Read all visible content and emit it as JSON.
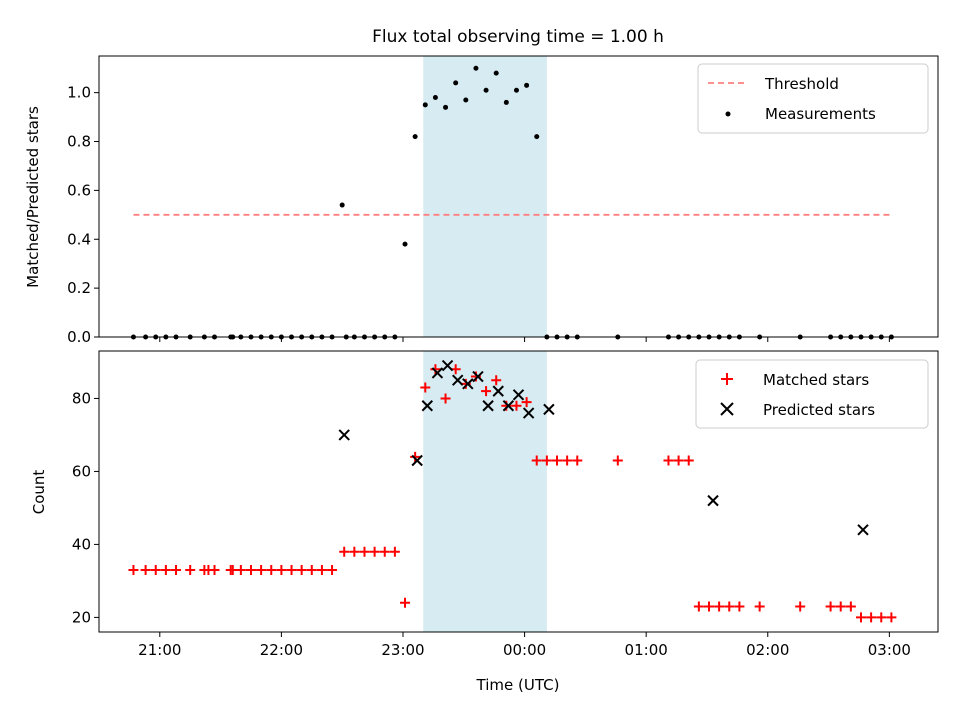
{
  "title": "Flux total observing time = 1.00 h",
  "colors": {
    "threshold": "#ff8080",
    "measurement": "#000000",
    "matched": "#ff0000",
    "predicted": "#000000",
    "band": "#add8e6"
  },
  "chart_data": [
    {
      "type": "scatter",
      "ylabel": "Matched/Predicted stars",
      "xlim": [
        20.5,
        3.4
      ],
      "ylim": [
        0,
        1.15
      ],
      "yticks": [
        "0.0",
        "0.2",
        "0.4",
        "0.6",
        "0.8",
        "1.0"
      ],
      "shaded_band": {
        "from": "23:10",
        "to": "00:11"
      },
      "legend_position": "top-right",
      "series": [
        {
          "name": "Threshold",
          "style": "dashed-line",
          "x": [
            "20:47",
            "03:00"
          ],
          "values": [
            0.5,
            0.5
          ]
        },
        {
          "name": "Measurements",
          "style": "dot",
          "x": [
            "20:47",
            "20:53",
            "20:58",
            "21:03",
            "21:08",
            "21:15",
            "21:22",
            "21:27",
            "21:35",
            "21:36",
            "21:40",
            "21:45",
            "21:50",
            "21:55",
            "22:00",
            "22:05",
            "22:10",
            "22:15",
            "22:20",
            "22:25",
            "22:30",
            "22:32",
            "22:36",
            "22:41",
            "22:46",
            "22:51",
            "22:56",
            "23:01",
            "23:06",
            "23:11",
            "23:16",
            "23:21",
            "23:26",
            "23:31",
            "23:36",
            "23:41",
            "23:46",
            "23:51",
            "23:56",
            "00:01",
            "00:06",
            "00:11",
            "00:16",
            "00:21",
            "00:26",
            "00:46",
            "01:11",
            "01:16",
            "01:21",
            "01:26",
            "01:31",
            "01:36",
            "01:41",
            "01:46",
            "01:56",
            "02:16",
            "02:31",
            "02:36",
            "02:41",
            "02:46",
            "02:51",
            "02:56",
            "03:01"
          ],
          "values": [
            0,
            0,
            0,
            0,
            0,
            0,
            0,
            0,
            0,
            0,
            0,
            0,
            0,
            0,
            0,
            0,
            0,
            0,
            0,
            0,
            0.54,
            0,
            0,
            0,
            0,
            0,
            0,
            0.38,
            0.82,
            0.95,
            0.98,
            0.94,
            1.04,
            0.97,
            1.1,
            1.01,
            1.08,
            0.96,
            1.01,
            1.03,
            0.82,
            0,
            0,
            0,
            0,
            0,
            0,
            0,
            0,
            0,
            0,
            0,
            0,
            0,
            0,
            0,
            0,
            0,
            0,
            0,
            0,
            0,
            0
          ]
        }
      ]
    },
    {
      "type": "scatter",
      "xlabel": "Time (UTC)",
      "ylabel": "Count",
      "xlim": [
        20.5,
        3.4
      ],
      "ylim": [
        16,
        93
      ],
      "yticks": [
        "20",
        "40",
        "60",
        "80"
      ],
      "xticks": [
        "21:00",
        "22:00",
        "23:00",
        "00:00",
        "01:00",
        "02:00",
        "03:00"
      ],
      "shaded_band": {
        "from": "23:10",
        "to": "00:11"
      },
      "legend_position": "top-right",
      "series": [
        {
          "name": "Matched stars",
          "style": "plus",
          "x": [
            "20:47",
            "20:53",
            "20:58",
            "21:03",
            "21:08",
            "21:15",
            "21:22",
            "21:24",
            "21:27",
            "21:35",
            "21:36",
            "21:40",
            "21:45",
            "21:50",
            "21:55",
            "22:00",
            "22:05",
            "22:10",
            "22:15",
            "22:20",
            "22:25",
            "22:31",
            "22:36",
            "22:41",
            "22:46",
            "22:51",
            "22:56",
            "23:01",
            "23:06",
            "23:11",
            "23:16",
            "23:21",
            "23:26",
            "23:31",
            "23:36",
            "23:41",
            "23:46",
            "23:51",
            "23:56",
            "00:01",
            "00:06",
            "00:11",
            "00:16",
            "00:21",
            "00:26",
            "00:46",
            "01:11",
            "01:16",
            "01:21",
            "01:26",
            "01:31",
            "01:36",
            "01:41",
            "01:46",
            "01:56",
            "02:16",
            "02:31",
            "02:36",
            "02:41",
            "02:46",
            "02:51",
            "02:56",
            "03:01"
          ],
          "values": [
            33,
            33,
            33,
            33,
            33,
            33,
            33,
            33,
            33,
            33,
            33,
            33,
            33,
            33,
            33,
            33,
            33,
            33,
            33,
            33,
            33,
            38,
            38,
            38,
            38,
            38,
            38,
            24,
            64,
            83,
            88,
            80,
            88,
            84,
            86,
            82,
            85,
            78,
            78,
            79,
            63,
            63,
            63,
            63,
            63,
            63,
            63,
            63,
            63,
            23,
            23,
            23,
            23,
            23,
            23,
            23,
            23,
            23,
            23,
            20,
            20,
            20,
            20
          ]
        },
        {
          "name": "Predicted stars",
          "style": "x",
          "x": [
            "22:31",
            "23:07",
            "23:12",
            "23:17",
            "23:22",
            "23:27",
            "23:32",
            "23:37",
            "23:42",
            "23:47",
            "23:52",
            "23:57",
            "00:02",
            "00:12",
            "01:33",
            "02:47"
          ],
          "values": [
            70,
            63,
            78,
            87,
            89,
            85,
            84,
            86,
            78,
            82,
            78,
            81,
            76,
            77,
            52,
            44
          ]
        }
      ]
    }
  ]
}
